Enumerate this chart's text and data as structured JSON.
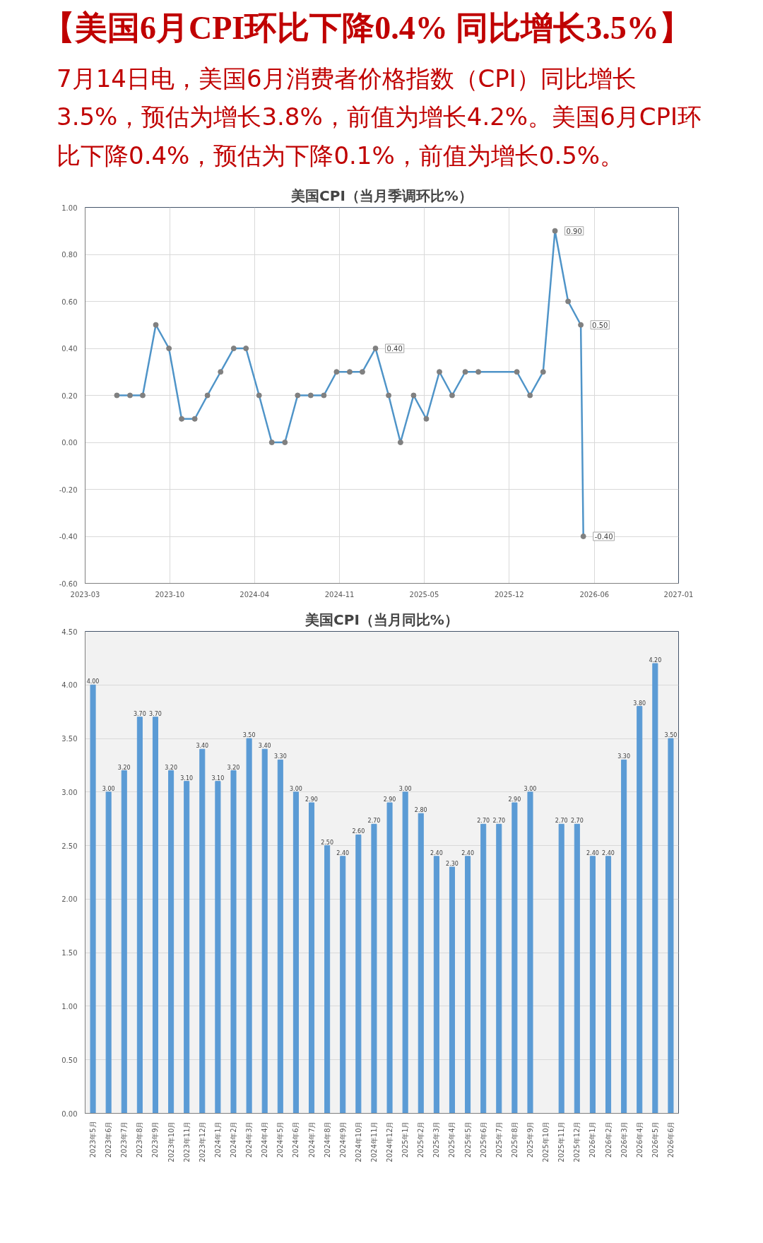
{
  "chart_data": [
    {
      "type": "line",
      "title": "美国CPI（当月季调环比%）",
      "annotations": [
        "【美国6月CPI环比下降0.4% 同比增长3.5%】",
        "7月14日电，美国6月消费者价格指数（CPI）同比增长3.5%，预估为增长3.8%，前值为增长4.2%。美国6月CPI环比下降0.4%，预估为下降0.1%，前值为增长0.5%。"
      ],
      "x": [
        "2023-05-15",
        "2023-06-15",
        "2023-07-15",
        "2023-08-15",
        "2023-09-15",
        "2023-10-15",
        "2023-11-15",
        "2023-12-15",
        "2024-01-15",
        "2024-02-15",
        "2024-03-15",
        "2024-04-15",
        "2024-05-15",
        "2024-06-15",
        "2024-07-15",
        "2024-08-15",
        "2024-09-15",
        "2024-10-15",
        "2024-11-15",
        "2024-12-15",
        "2025-01-15",
        "2025-02-15",
        "2025-03-15",
        "2025-04-15",
        "2025-05-15",
        "2025-06-15",
        "2025-07-15",
        "2025-08-15",
        "2025-09-15",
        "2025-12-15",
        "2026-01-15",
        "2026-02-15",
        "2026-03-15",
        "2026-04-15",
        "2026-05-15",
        "2026-05-21"
      ],
      "series": [
        {
          "color": "#4f94c8",
          "values": [
            0.2,
            0.2,
            0.2,
            0.5,
            0.4,
            0.1,
            0.1,
            0.2,
            0.3,
            0.4,
            0.4,
            0.2,
            0.0,
            0.0,
            0.2,
            0.2,
            0.2,
            0.3,
            0.3,
            0.3,
            0.4,
            0.2,
            0.0,
            0.2,
            0.1,
            0.3,
            0.2,
            0.3,
            0.3,
            0.3,
            0.2,
            0.3,
            0.9,
            0.6,
            0.5,
            -0.4
          ],
          "value_labels": [
            null,
            null,
            null,
            null,
            null,
            null,
            null,
            null,
            null,
            null,
            null,
            null,
            null,
            null,
            null,
            null,
            null,
            null,
            null,
            null,
            "0.40",
            null,
            null,
            null,
            null,
            null,
            null,
            null,
            null,
            null,
            null,
            null,
            "0.90",
            null,
            "0.50",
            "-0.40"
          ]
        }
      ],
      "marker": "circle",
      "line_style": "solid",
      "grid": true,
      "xlim": [
        "2023-03-01",
        "2027-01-01"
      ],
      "xticks": [
        {
          "value": "2023-03-01",
          "label": "2023-03"
        },
        {
          "value": "2023-09-17",
          "label": "2023-10"
        },
        {
          "value": "2024-04-04",
          "label": "2024-04"
        },
        {
          "value": "2024-10-22",
          "label": "2024-11"
        },
        {
          "value": "2025-05-10",
          "label": "2025-05"
        },
        {
          "value": "2025-11-27",
          "label": "2025-12"
        },
        {
          "value": "2026-06-16",
          "label": "2026-06"
        },
        {
          "value": "2027-01-01",
          "label": "2027-01"
        }
      ],
      "ylim": [
        -0.6,
        1.0
      ],
      "yticks": [
        {
          "value": -0.6,
          "label": "-0.60"
        },
        {
          "value": -0.4,
          "label": "-0.40"
        },
        {
          "value": -0.2,
          "label": "-0.20"
        },
        {
          "value": 0,
          "label": "0.00"
        },
        {
          "value": 0.2,
          "label": "0.20"
        },
        {
          "value": 0.4,
          "label": "0.40"
        },
        {
          "value": 0.6,
          "label": "0.60"
        },
        {
          "value": 0.8,
          "label": "0.80"
        },
        {
          "value": 1.0,
          "label": "1.00"
        }
      ]
    },
    {
      "type": "bar",
      "title": "美国CPI（当月同比%）",
      "categories": [
        "2023年5月",
        "2023年6月",
        "2023年7月",
        "2023年8月",
        "2023年9月",
        "2023年10月",
        "2023年11月",
        "2023年12月",
        "2024年1月",
        "2024年2月",
        "2024年3月",
        "2024年4月",
        "2024年5月",
        "2024年6月",
        "2024年7月",
        "2024年8月",
        "2024年9月",
        "2024年10月",
        "2024年11月",
        "2024年12月",
        "2025年1月",
        "2025年2月",
        "2025年3月",
        "2025年4月",
        "2025年5月",
        "2025年6月",
        "2025年7月",
        "2025年8月",
        "2025年9月",
        "2025年10月",
        "2025年11月",
        "2025年12月",
        "2026年1月",
        "2026年2月",
        "2026年3月",
        "2026年4月",
        "2026年5月",
        "2026年6月"
      ],
      "series": [
        {
          "color": "#5b9bd5",
          "values": [
            4.0,
            3.0,
            3.2,
            3.7,
            3.7,
            3.2,
            3.1,
            3.4,
            3.1,
            3.2,
            3.5,
            3.4,
            3.3,
            3.0,
            2.9,
            2.5,
            2.4,
            2.6,
            2.7,
            2.9,
            3.0,
            2.8,
            2.4,
            2.3,
            2.4,
            2.7,
            2.7,
            2.9,
            3.0,
            null,
            2.7,
            2.7,
            2.4,
            2.4,
            3.3,
            3.8,
            4.2,
            3.5
          ],
          "value_labels": [
            "4.00",
            "3.00",
            "3.20",
            "3.70",
            "3.70",
            "3.20",
            "3.10",
            "3.40",
            "3.10",
            "3.20",
            "3.50",
            "3.40",
            "3.30",
            "3.00",
            "2.90",
            "2.50",
            "2.40",
            "2.60",
            "2.70",
            "2.90",
            "3.00",
            "2.80",
            "2.40",
            "2.30",
            "2.40",
            "2.70",
            "2.70",
            "2.90",
            "3.00",
            null,
            "2.70",
            "2.70",
            "2.40",
            "2.40",
            "3.30",
            "3.80",
            "4.20",
            "3.50"
          ]
        }
      ],
      "grid": "y",
      "ylim": [
        0,
        4.5
      ],
      "yticks": [
        {
          "value": 0,
          "label": "0.00"
        },
        {
          "value": 0.5,
          "label": "0.50"
        },
        {
          "value": 1.0,
          "label": "1.00"
        },
        {
          "value": 1.5,
          "label": "1.50"
        },
        {
          "value": 2.0,
          "label": "2.00"
        },
        {
          "value": 2.5,
          "label": "2.50"
        },
        {
          "value": 3.0,
          "label": "3.00"
        },
        {
          "value": 3.5,
          "label": "3.50"
        },
        {
          "value": 4.0,
          "label": "4.00"
        },
        {
          "value": 4.5,
          "label": "4.50"
        }
      ]
    }
  ]
}
